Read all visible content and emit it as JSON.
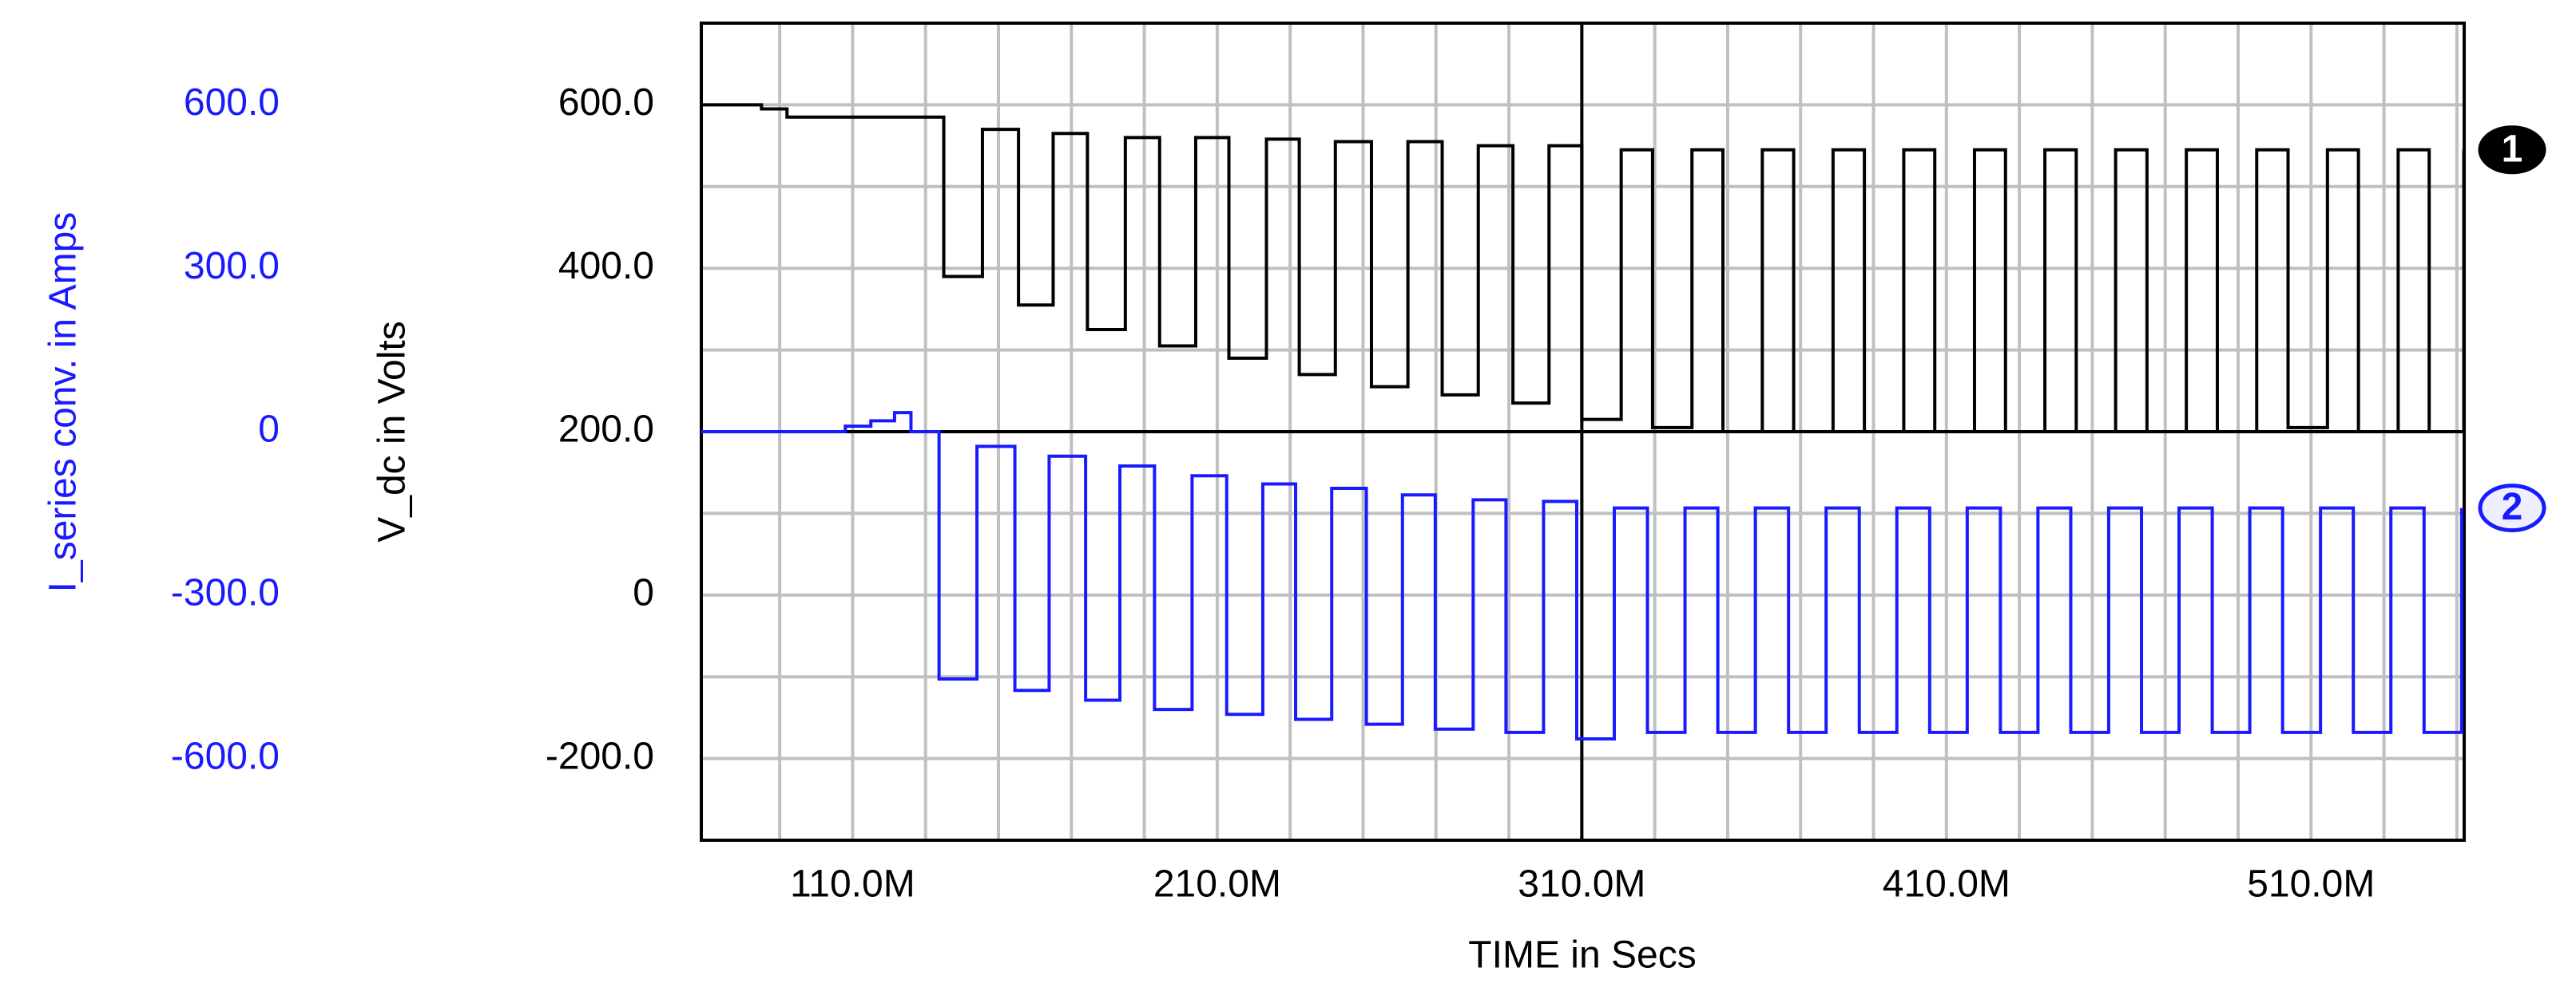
{
  "chart_data": {
    "type": "line",
    "xlabel": "TIME in Secs",
    "ylabel": "V_dc in Volts",
    "y2label": "I_series conv. in Amps",
    "xlim": [
      68.5,
      552
    ],
    "xticks": [
      {
        "value": 110,
        "label": "110.0M"
      },
      {
        "value": 210,
        "label": "210.0M"
      },
      {
        "value": 310,
        "label": "310.0M"
      },
      {
        "value": 410,
        "label": "410.0M"
      },
      {
        "value": 510,
        "label": "510.0M"
      }
    ],
    "xgrid": [
      90,
      130,
      150,
      170,
      190,
      230,
      250,
      270,
      290,
      330,
      350,
      370,
      390,
      430,
      450,
      470,
      490,
      530,
      550
    ],
    "ylim": [
      -300,
      700
    ],
    "yticks": [
      {
        "value": 600,
        "label": "600.0"
      },
      {
        "value": 400,
        "label": "400.0"
      },
      {
        "value": 200,
        "label": "200.0"
      },
      0,
      {
        "value": -200,
        "label": "-200.0"
      }
    ],
    "ygrid": [
      500,
      300,
      100,
      -100
    ],
    "y2lim": [
      -750,
      750
    ],
    "y2ticks": [
      {
        "value": 600,
        "label": "600.0"
      },
      {
        "value": 300,
        "label": "300.0"
      },
      0,
      {
        "value": -300,
        "label": "-300.0"
      },
      {
        "value": -600,
        "label": "-600.0"
      }
    ],
    "cursor_x": 310,
    "grid": true,
    "series": [
      {
        "name": "V_dc",
        "marker": "1",
        "color": "#000000",
        "axis": "y",
        "x": [
          68.5,
          80,
          85,
          92,
          127,
          135,
          145.6,
          155.5,
          165,
          174.4,
          184.8,
          194.2,
          204.1,
          213.2,
          223.5,
          232.5,
          242.4,
          252.3,
          262.3,
          271.7,
          281.6,
          291.1,
          301,
          310,
          320.8,
          329.4,
          340.2,
          348.7,
          359.5,
          368.1,
          378.9,
          387.5,
          398.3,
          406.8,
          417.7,
          426.2,
          437,
          445.6,
          456.4,
          465,
          475.8,
          484.3,
          495.1,
          503.7,
          514.5,
          523,
          533.9,
          542.4,
          551.9
        ],
        "values": [
          600,
          600,
          595,
          585,
          585,
          390,
          570,
          355,
          565,
          325,
          560,
          305,
          560,
          290,
          558,
          270,
          555,
          255,
          555,
          245,
          550,
          235,
          550,
          215,
          545,
          205,
          545,
          200,
          545,
          200,
          545,
          200,
          545,
          200,
          545,
          200,
          545,
          200,
          545,
          200,
          545,
          200,
          545,
          205,
          545,
          200,
          545,
          200,
          545
        ]
      },
      {
        "name": "I_series conv.",
        "marker": "2",
        "color": "#1a1aff",
        "axis": "y2",
        "x": [
          68.5,
          100,
          108,
          115,
          121.5,
          126,
          133.7,
          144.1,
          154.5,
          163.9,
          173.9,
          183.3,
          192.8,
          203.1,
          212.6,
          222.5,
          231.5,
          241.4,
          250.9,
          260.8,
          269.8,
          280.2,
          289.2,
          299.5,
          308.6,
          318.9,
          328,
          338.3,
          347.3,
          357.6,
          366.7,
          377,
          386.1,
          396.4,
          405.4,
          415.7,
          424.8,
          435.1,
          444.1,
          454.5,
          463.5,
          473.8,
          482.9,
          493.2,
          502.2,
          512.6,
          521.6,
          531.9,
          541,
          551.3
        ],
        "values": [
          0,
          0,
          10,
          20,
          35,
          0,
          -454,
          -27,
          -475,
          -45,
          -493,
          -63,
          -510,
          -81,
          -519,
          -96,
          -528,
          -104,
          -537,
          -116,
          -546,
          -125,
          -552,
          -128,
          -564,
          -140,
          -552,
          -140,
          -552,
          -140,
          -552,
          -140,
          -552,
          -140,
          -552,
          -140,
          -552,
          -140,
          -552,
          -140,
          -552,
          -140,
          -552,
          -140,
          -552,
          -140,
          -552,
          -140,
          -552,
          -140
        ]
      }
    ]
  }
}
